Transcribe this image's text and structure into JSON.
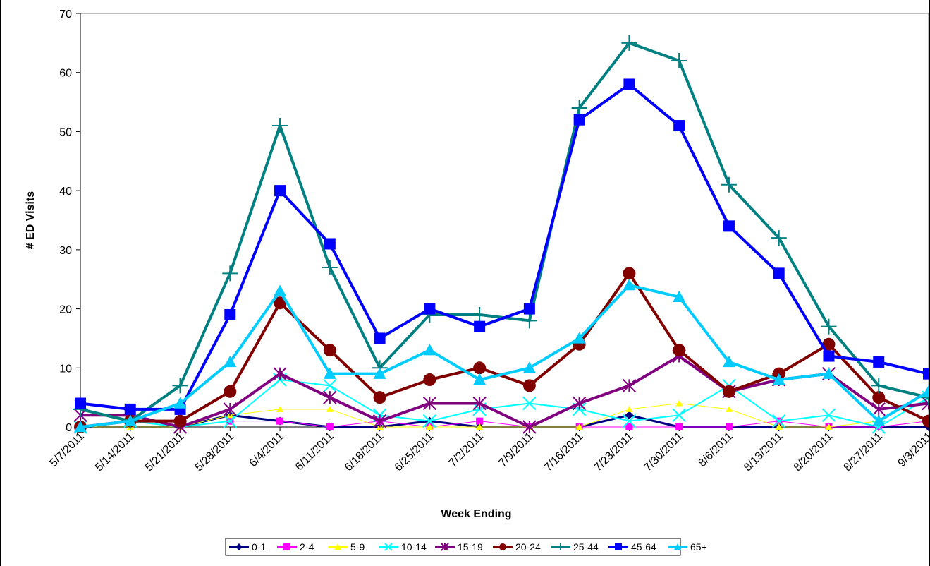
{
  "chart_data": {
    "type": "line",
    "xlabel": "Week Ending",
    "ylabel": "# ED Visits",
    "ylim": [
      0,
      70
    ],
    "yticks": [
      0,
      10,
      20,
      30,
      40,
      50,
      60,
      70
    ],
    "grid": false,
    "legend_position": "bottom",
    "categories": [
      "5/7/2011",
      "5/14/2011",
      "5/21/2011",
      "5/28/2011",
      "6/4/2011",
      "6/11/2011",
      "6/18/2011",
      "6/25/2011",
      "7/2/2011",
      "7/9/2011",
      "7/16/2011",
      "7/23/2011",
      "7/30/2011",
      "8/6/2011",
      "8/13/2011",
      "8/20/2011",
      "8/27/2011",
      "9/3/2011"
    ],
    "series": [
      {
        "name": "0-1",
        "color": "#000080",
        "marker": "diamond",
        "values": [
          0,
          0,
          0,
          2,
          1,
          0,
          0,
          1,
          0,
          0,
          0,
          2,
          0,
          0,
          0,
          0,
          0,
          0
        ]
      },
      {
        "name": "2-4",
        "color": "#ff00ff",
        "marker": "square",
        "values": [
          0,
          1,
          0,
          1,
          1,
          0,
          1,
          0,
          1,
          0,
          0,
          0,
          0,
          0,
          1,
          0,
          0,
          1
        ]
      },
      {
        "name": "5-9",
        "color": "#ffff00",
        "marker": "triangle",
        "values": [
          0,
          0,
          0,
          2,
          3,
          3,
          0,
          0,
          0,
          0,
          0,
          3,
          4,
          3,
          0,
          0,
          1,
          1
        ]
      },
      {
        "name": "10-14",
        "color": "#00ffff",
        "marker": "x",
        "values": [
          0,
          1,
          0,
          1,
          8,
          7,
          2,
          1,
          3,
          4,
          3,
          1,
          2,
          7,
          1,
          2,
          0,
          5
        ]
      },
      {
        "name": "15-19",
        "color": "#800080",
        "marker": "star",
        "values": [
          2,
          2,
          0,
          3,
          9,
          5,
          1,
          4,
          4,
          0,
          4,
          7,
          12,
          6,
          8,
          9,
          3,
          4
        ]
      },
      {
        "name": "20-24",
        "color": "#800000",
        "marker": "circle",
        "values": [
          0,
          1,
          1,
          6,
          21,
          13,
          5,
          8,
          10,
          7,
          14,
          26,
          13,
          6,
          9,
          14,
          5,
          1
        ]
      },
      {
        "name": "25-44",
        "color": "#008080",
        "marker": "plus",
        "values": [
          3,
          1,
          7,
          26,
          51,
          27,
          10,
          19,
          19,
          18,
          54,
          65,
          62,
          41,
          32,
          17,
          7,
          5
        ]
      },
      {
        "name": "45-64",
        "color": "#0000ff",
        "marker": "square",
        "values": [
          4,
          3,
          3,
          19,
          40,
          31,
          15,
          20,
          17,
          20,
          52,
          58,
          51,
          34,
          26,
          12,
          11,
          9
        ]
      },
      {
        "name": "65+",
        "color": "#00ccff",
        "marker": "triangle",
        "values": [
          0,
          1,
          4,
          11,
          23,
          9,
          9,
          13,
          8,
          10,
          15,
          24,
          22,
          11,
          8,
          9,
          1,
          6
        ]
      }
    ]
  }
}
